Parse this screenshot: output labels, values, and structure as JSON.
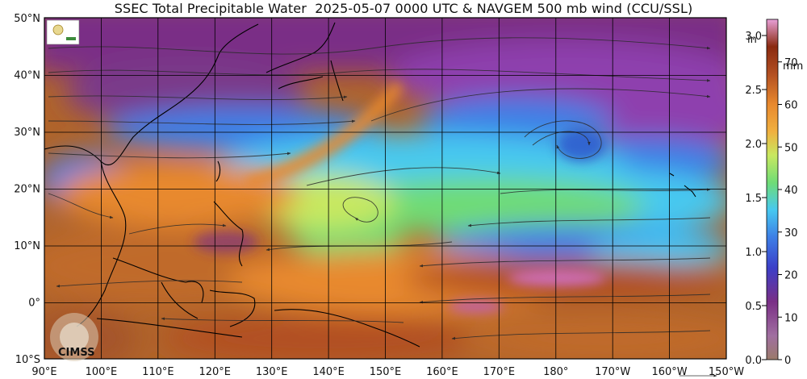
{
  "title": "SSEC Total Precipitable Water  2025-05-07 0000 UTC & NAVGEM 500 mb wind (CCU/SSL)",
  "lat_labels": [
    "50°N",
    "40°N",
    "30°N",
    "20°N",
    "10°N",
    "0°",
    "10°S"
  ],
  "lon_labels": [
    "90°E",
    "100°E",
    "110°E",
    "120°E",
    "130°E",
    "140°E",
    "150°E",
    "160°E",
    "170°E",
    "180°",
    "170°W",
    "160°W",
    "150°W"
  ],
  "inch_scale": {
    "unit": "in",
    "labels": [
      "3.0",
      "2.5",
      "2.0",
      "1.5",
      "1.0",
      "0.5",
      "0.0"
    ]
  },
  "mm_scale": {
    "unit": "mm",
    "labels": [
      "70",
      "60",
      "50",
      "40",
      "30",
      "20",
      "10",
      "0"
    ]
  },
  "logo_text": "CIMSS",
  "colors": {
    "dry_purple": "#7a2f86",
    "violet": "#8e3fae",
    "blue": "#3d7fe6",
    "cyan": "#47c9f0",
    "green": "#6fdc76",
    "yellow_green": "#c8e860",
    "orange": "#e8892e",
    "brown": "#b24f22",
    "grid": "#000000",
    "coast": "#000000"
  }
}
